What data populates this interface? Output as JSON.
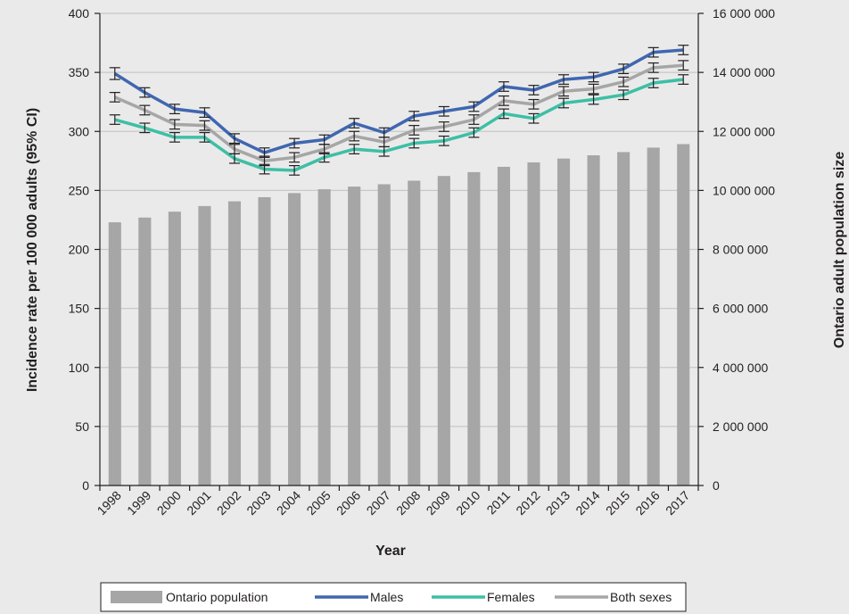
{
  "chart_data": {
    "type": "bar",
    "title": "",
    "xlabel": "Year",
    "ylabel": "Incidence rate per 100 000  adults (95% CI)",
    "y2label": "Ontario adult population size",
    "ylim": [
      0,
      400
    ],
    "y2lim": [
      0,
      16000000
    ],
    "yticks": [
      0,
      50,
      100,
      150,
      200,
      250,
      300,
      350,
      400
    ],
    "y2ticks": [
      0,
      2000000,
      4000000,
      6000000,
      8000000,
      10000000,
      12000000,
      14000000,
      16000000
    ],
    "y2tick_labels": [
      "0",
      "2 000 000",
      "4 000 000",
      "6 000 000",
      "8 000 000",
      "10 000 000",
      "12 000 000",
      "14 000 000",
      "16 000 000"
    ],
    "categories": [
      "1998",
      "1999",
      "2000",
      "2001",
      "2002",
      "2003",
      "2004",
      "2005",
      "2006",
      "2007",
      "2008",
      "2009",
      "2010",
      "2011",
      "2012",
      "2013",
      "2014",
      "2015",
      "2016",
      "2017"
    ],
    "bars": {
      "name": "Ontario population",
      "axis": "right",
      "color": "#a6a6a6",
      "values": [
        8920000,
        9080000,
        9280000,
        9470000,
        9630000,
        9770000,
        9910000,
        10040000,
        10130000,
        10210000,
        10330000,
        10490000,
        10620000,
        10800000,
        10950000,
        11080000,
        11190000,
        11300000,
        11450000,
        11570000
      ]
    },
    "series": [
      {
        "name": "Males",
        "axis": "left",
        "color": "#3f67b1",
        "values": [
          349,
          333,
          319,
          316,
          294,
          282,
          290,
          293,
          307,
          299,
          313,
          317,
          321,
          338,
          335,
          344,
          346,
          353,
          367,
          369
        ],
        "ci_low": [
          344,
          329,
          315,
          312,
          290,
          278,
          286,
          289,
          303,
          295,
          309,
          313,
          317,
          334,
          331,
          340,
          342,
          349,
          363,
          365
        ],
        "ci_high": [
          354,
          337,
          323,
          320,
          298,
          286,
          294,
          297,
          311,
          303,
          317,
          321,
          325,
          342,
          339,
          348,
          350,
          357,
          371,
          373
        ]
      },
      {
        "name": "Females",
        "axis": "left",
        "color": "#3dbfa5",
        "values": [
          310,
          303,
          295,
          295,
          277,
          268,
          267,
          278,
          285,
          283,
          290,
          292,
          299,
          315,
          311,
          324,
          327,
          331,
          341,
          344
        ],
        "ci_low": [
          306,
          299,
          291,
          291,
          273,
          264,
          263,
          274,
          281,
          279,
          286,
          288,
          295,
          311,
          307,
          320,
          323,
          327,
          337,
          340
        ],
        "ci_high": [
          314,
          307,
          299,
          299,
          281,
          272,
          271,
          282,
          289,
          287,
          294,
          296,
          303,
          319,
          315,
          328,
          331,
          335,
          345,
          348
        ]
      },
      {
        "name": "Both sexes",
        "axis": "left",
        "color": "#a6a6a6",
        "values": [
          329,
          318,
          306,
          305,
          285,
          275,
          278,
          285,
          296,
          291,
          301,
          304,
          310,
          326,
          323,
          334,
          336,
          342,
          354,
          356
        ],
        "ci_low": [
          325,
          314,
          302,
          301,
          281,
          271,
          274,
          281,
          292,
          287,
          297,
          300,
          306,
          322,
          319,
          330,
          332,
          338,
          350,
          352
        ],
        "ci_high": [
          333,
          322,
          310,
          309,
          289,
          279,
          282,
          289,
          300,
          295,
          305,
          308,
          314,
          330,
          327,
          338,
          340,
          346,
          358,
          360
        ]
      }
    ],
    "legend_position": "bottom",
    "grid": true
  }
}
